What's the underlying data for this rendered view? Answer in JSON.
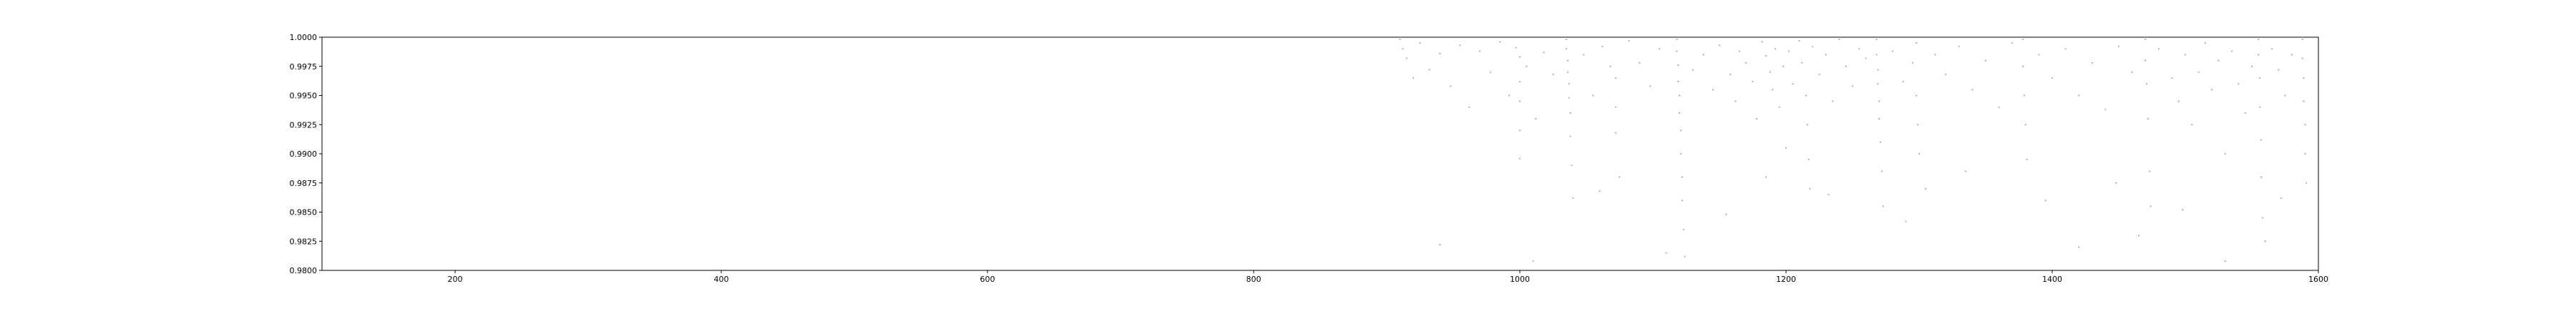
{
  "chart_data": {
    "type": "scatter",
    "title": "",
    "xlabel": "",
    "ylabel": "",
    "xlim": [
      100,
      1600
    ],
    "ylim": [
      0.98,
      1.0
    ],
    "x_ticks": [
      200,
      400,
      600,
      800,
      1000,
      1200,
      1400,
      1600
    ],
    "x_tick_labels": [
      "200",
      "400",
      "600",
      "800",
      "1000",
      "1200",
      "1400",
      "1600"
    ],
    "y_ticks": [
      0.98,
      0.9825,
      0.985,
      0.9875,
      0.99,
      0.9925,
      0.995,
      0.9975,
      1.0
    ],
    "y_tick_labels": [
      "0.9800",
      "0.9825",
      "0.9850",
      "0.9875",
      "0.9900",
      "0.9925",
      "0.9950",
      "0.9975",
      "1.0000"
    ],
    "grid": false,
    "legend": "none",
    "marker_color": "#1f77b4",
    "series": [
      {
        "points": [
          [
            910,
            0.9998
          ],
          [
            912,
            0.999
          ],
          [
            915,
            0.9982
          ],
          [
            920,
            0.9965
          ],
          [
            925,
            0.9995
          ],
          [
            932,
            0.9972
          ],
          [
            940,
            0.9986
          ],
          [
            948,
            0.9958
          ],
          [
            955,
            0.9993
          ],
          [
            962,
            0.994
          ],
          [
            970,
            0.9988
          ],
          [
            978,
            0.997
          ],
          [
            985,
            0.9996
          ],
          [
            992,
            0.995
          ],
          [
            997,
            0.9991
          ],
          [
            1000,
            0.9983
          ],
          [
            1000,
            0.9962
          ],
          [
            1000,
            0.9945
          ],
          [
            1000,
            0.992
          ],
          [
            1000,
            0.9896
          ],
          [
            1005,
            0.9975
          ],
          [
            1012,
            0.993
          ],
          [
            1018,
            0.9987
          ],
          [
            1025,
            0.9968
          ],
          [
            1035,
            0.9998
          ],
          [
            1035,
            0.999
          ],
          [
            1036,
            0.998
          ],
          [
            1036,
            0.997
          ],
          [
            1037,
            0.996
          ],
          [
            1037,
            0.9948
          ],
          [
            1038,
            0.9935
          ],
          [
            1038,
            0.9915
          ],
          [
            1039,
            0.989
          ],
          [
            1040,
            0.9862
          ],
          [
            1048,
            0.9985
          ],
          [
            1055,
            0.995
          ],
          [
            1062,
            0.9992
          ],
          [
            1068,
            0.9975
          ],
          [
            1072,
            0.9965
          ],
          [
            1072,
            0.994
          ],
          [
            1072,
            0.9918
          ],
          [
            1075,
            0.988
          ],
          [
            1082,
            0.9997
          ],
          [
            1090,
            0.9978
          ],
          [
            1098,
            0.9958
          ],
          [
            1105,
            0.999
          ],
          [
            1118,
            0.9998
          ],
          [
            1118,
            0.9988
          ],
          [
            1119,
            0.9976
          ],
          [
            1119,
            0.9962
          ],
          [
            1120,
            0.995
          ],
          [
            1120,
            0.9935
          ],
          [
            1121,
            0.992
          ],
          [
            1121,
            0.99
          ],
          [
            1122,
            0.988
          ],
          [
            1122,
            0.986
          ],
          [
            1123,
            0.9835
          ],
          [
            1124,
            0.9812
          ],
          [
            1130,
            0.9972
          ],
          [
            1138,
            0.9985
          ],
          [
            1145,
            0.9955
          ],
          [
            1150,
            0.9993
          ],
          [
            1158,
            0.9968
          ],
          [
            1162,
            0.9945
          ],
          [
            1165,
            0.9988
          ],
          [
            1170,
            0.9978
          ],
          [
            1175,
            0.9962
          ],
          [
            1178,
            0.993
          ],
          [
            1182,
            0.9996
          ],
          [
            1185,
            0.9984
          ],
          [
            1188,
            0.997
          ],
          [
            1190,
            0.9955
          ],
          [
            1192,
            0.999
          ],
          [
            1195,
            0.994
          ],
          [
            1198,
            0.9975
          ],
          [
            1200,
            0.9905
          ],
          [
            1202,
            0.9988
          ],
          [
            1205,
            0.996
          ],
          [
            1210,
            0.9997
          ],
          [
            1212,
            0.9978
          ],
          [
            1215,
            0.995
          ],
          [
            1216,
            0.9925
          ],
          [
            1217,
            0.9895
          ],
          [
            1218,
            0.987
          ],
          [
            1220,
            0.9992
          ],
          [
            1225,
            0.9968
          ],
          [
            1230,
            0.9985
          ],
          [
            1235,
            0.9945
          ],
          [
            1240,
            0.9998
          ],
          [
            1245,
            0.9975
          ],
          [
            1250,
            0.9958
          ],
          [
            1255,
            0.999
          ],
          [
            1260,
            0.9982
          ],
          [
            1268,
            0.9998
          ],
          [
            1268,
            0.9985
          ],
          [
            1269,
            0.9972
          ],
          [
            1269,
            0.996
          ],
          [
            1270,
            0.9945
          ],
          [
            1270,
            0.993
          ],
          [
            1271,
            0.991
          ],
          [
            1272,
            0.9885
          ],
          [
            1273,
            0.9855
          ],
          [
            1280,
            0.9988
          ],
          [
            1288,
            0.9962
          ],
          [
            1295,
            0.9978
          ],
          [
            1298,
            0.9995
          ],
          [
            1298,
            0.995
          ],
          [
            1299,
            0.9925
          ],
          [
            1300,
            0.99
          ],
          [
            1305,
            0.987
          ],
          [
            1312,
            0.9985
          ],
          [
            1320,
            0.9968
          ],
          [
            1330,
            0.9992
          ],
          [
            1340,
            0.9955
          ],
          [
            1350,
            0.998
          ],
          [
            1360,
            0.994
          ],
          [
            1370,
            0.9995
          ],
          [
            1378,
            0.9998
          ],
          [
            1378,
            0.9975
          ],
          [
            1379,
            0.995
          ],
          [
            1380,
            0.9925
          ],
          [
            1381,
            0.9895
          ],
          [
            1390,
            0.9985
          ],
          [
            1400,
            0.9965
          ],
          [
            1410,
            0.999
          ],
          [
            1420,
            0.995
          ],
          [
            1430,
            0.9978
          ],
          [
            1440,
            0.9938
          ],
          [
            1450,
            0.9992
          ],
          [
            1460,
            0.997
          ],
          [
            1465,
            0.983
          ],
          [
            1470,
            0.9998
          ],
          [
            1470,
            0.998
          ],
          [
            1471,
            0.996
          ],
          [
            1472,
            0.993
          ],
          [
            1473,
            0.9885
          ],
          [
            1474,
            0.9855
          ],
          [
            1480,
            0.999
          ],
          [
            1490,
            0.9965
          ],
          [
            1495,
            0.9945
          ],
          [
            1500,
            0.9985
          ],
          [
            1505,
            0.9925
          ],
          [
            1510,
            0.997
          ],
          [
            1515,
            0.9995
          ],
          [
            1520,
            0.9955
          ],
          [
            1525,
            0.998
          ],
          [
            1530,
            0.99
          ],
          [
            1535,
            0.9988
          ],
          [
            1540,
            0.996
          ],
          [
            1545,
            0.9935
          ],
          [
            1550,
            0.9975
          ],
          [
            1555,
            0.9998
          ],
          [
            1555,
            0.9985
          ],
          [
            1556,
            0.9965
          ],
          [
            1556,
            0.994
          ],
          [
            1557,
            0.9912
          ],
          [
            1557,
            0.988
          ],
          [
            1558,
            0.9845
          ],
          [
            1560,
            0.9825
          ],
          [
            1565,
            0.999
          ],
          [
            1570,
            0.9972
          ],
          [
            1575,
            0.995
          ],
          [
            1580,
            0.9985
          ],
          [
            1588,
            0.9998
          ],
          [
            1588,
            0.9982
          ],
          [
            1589,
            0.9965
          ],
          [
            1589,
            0.9945
          ],
          [
            1590,
            0.9925
          ],
          [
            1590,
            0.99
          ],
          [
            1591,
            0.9875
          ],
          [
            940,
            0.9822
          ],
          [
            1010,
            0.9808
          ],
          [
            1060,
            0.9868
          ],
          [
            1110,
            0.9815
          ],
          [
            1155,
            0.9848
          ],
          [
            1185,
            0.988
          ],
          [
            1232,
            0.9865
          ],
          [
            1290,
            0.9842
          ],
          [
            1335,
            0.9885
          ],
          [
            1395,
            0.986
          ],
          [
            1420,
            0.982
          ],
          [
            1448,
            0.9875
          ],
          [
            1498,
            0.9852
          ],
          [
            1530,
            0.9808
          ],
          [
            1572,
            0.9862
          ]
        ]
      }
    ]
  }
}
